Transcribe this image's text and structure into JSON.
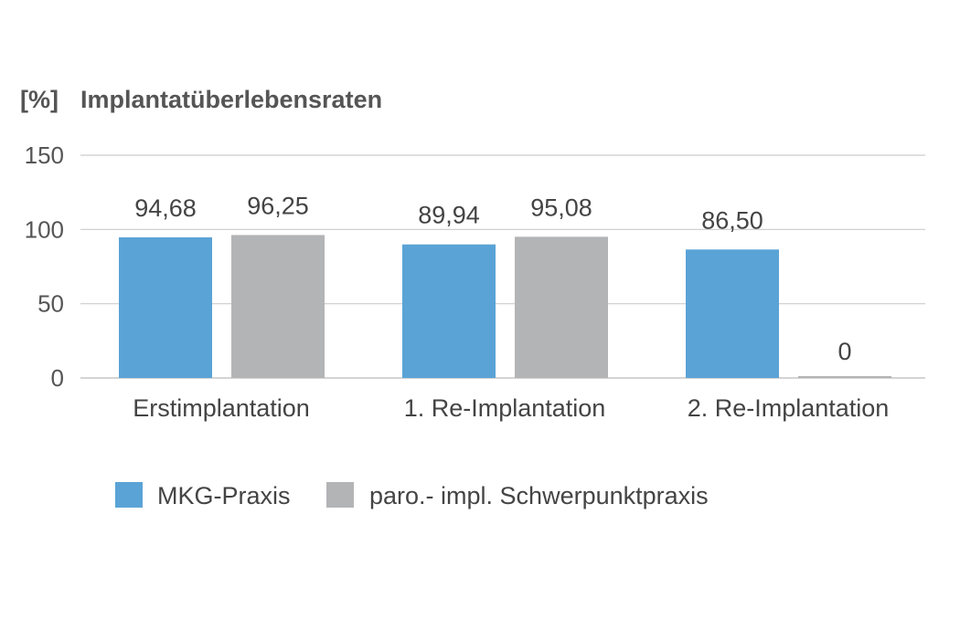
{
  "chart_data": {
    "type": "bar",
    "title": "Implantatüberlebensraten",
    "ylabel": "[%]",
    "xlabel": "",
    "categories": [
      "Erstimplantation",
      "1. Re-Implantation",
      "2. Re-Implantation"
    ],
    "series": [
      {
        "name": "MKG-Praxis",
        "color": "#5aa3d6",
        "values": [
          94.68,
          89.94,
          86.5
        ],
        "labels": [
          "94,68",
          "89,94",
          "86,50"
        ]
      },
      {
        "name": "paro.- impl. Schwerpunktpraxis",
        "color": "#b3b4b6",
        "values": [
          96.25,
          95.08,
          0
        ],
        "labels": [
          "96,25",
          "95,08",
          "0"
        ]
      }
    ],
    "ylim": [
      0,
      150
    ],
    "yticks": [
      0,
      50,
      100,
      150
    ],
    "grid": true,
    "legend_position": "bottom-left"
  }
}
